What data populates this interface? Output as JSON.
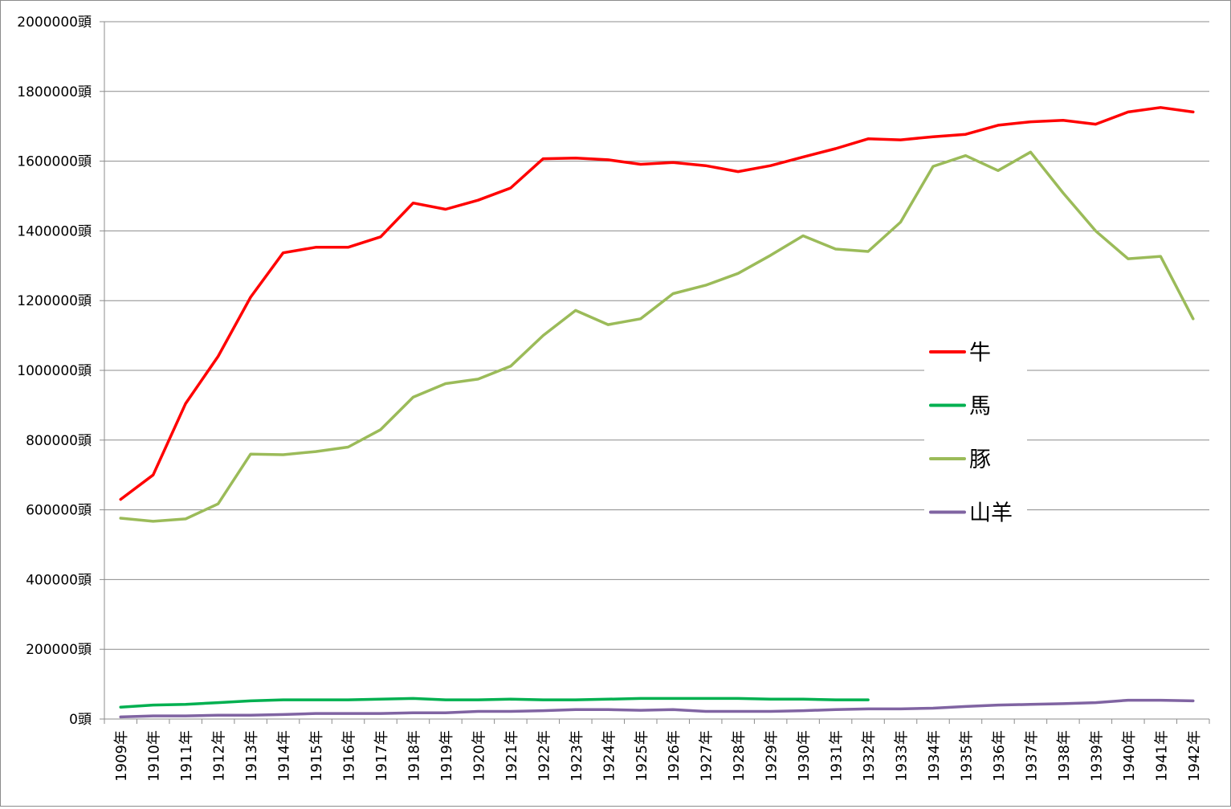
{
  "chart_data": {
    "type": "line",
    "title": "",
    "xlabel": "",
    "ylabel": "",
    "ylim": [
      0,
      2000000
    ],
    "ytick_values": [
      0,
      200000,
      400000,
      600000,
      800000,
      1000000,
      1200000,
      1400000,
      1600000,
      1800000,
      2000000
    ],
    "ytick_labels": [
      "0頭",
      "200000頭",
      "400000頭",
      "600000頭",
      "800000頭",
      "1000000頭",
      "1200000頭",
      "1400000頭",
      "1600000頭",
      "1800000頭",
      "2000000頭"
    ],
    "grid": true,
    "legend_position": "right",
    "categories": [
      "1909年",
      "1910年",
      "1911年",
      "1912年",
      "1913年",
      "1914年",
      "1915年",
      "1916年",
      "1917年",
      "1918年",
      "1919年",
      "1920年",
      "1921年",
      "1922年",
      "1923年",
      "1924年",
      "1925年",
      "1926年",
      "1927年",
      "1928年",
      "1929年",
      "1930年",
      "1931年",
      "1932年",
      "1933年",
      "1934年",
      "1935年",
      "1936年",
      "1937年",
      "1938年",
      "1939年",
      "1940年",
      "1941年",
      "1942年"
    ],
    "series": [
      {
        "name": "牛",
        "color": "#ff0000",
        "values": [
          630000,
          700000,
          905000,
          1040000,
          1210000,
          1337000,
          1353000,
          1353000,
          1383000,
          1480000,
          1462000,
          1488000,
          1523000,
          1607000,
          1609000,
          1604000,
          1591000,
          1596000,
          1587000,
          1570000,
          1587000,
          1612000,
          1636000,
          1664000,
          1661000,
          1670000,
          1677000,
          1703000,
          1713000,
          1717000,
          1706000,
          1741000,
          1754000,
          1741000
        ]
      },
      {
        "name": "馬",
        "color": "#00b050",
        "values": [
          34000,
          40000,
          42000,
          47000,
          52000,
          55000,
          55000,
          55000,
          57000,
          59000,
          55000,
          55000,
          57000,
          55000,
          55000,
          57000,
          59000,
          59000,
          59000,
          59000,
          57000,
          57000,
          55000,
          55000,
          null,
          null,
          null,
          null,
          null,
          null,
          null,
          null,
          null,
          null
        ]
      },
      {
        "name": "豚",
        "color": "#9bbb59",
        "values": [
          576000,
          567000,
          574000,
          617000,
          760000,
          758000,
          767000,
          780000,
          830000,
          923000,
          962000,
          975000,
          1012000,
          1100000,
          1172000,
          1131000,
          1148000,
          1220000,
          1244000,
          1278000,
          1330000,
          1386000,
          1348000,
          1341000,
          1425000,
          1585000,
          1616000,
          1573000,
          1626000,
          1509000,
          1400000,
          1320000,
          1327000,
          1148000
        ]
      },
      {
        "name": "山羊",
        "color": "#8064a2",
        "values": [
          6000,
          9000,
          9000,
          11000,
          11000,
          13000,
          16000,
          16000,
          16000,
          18000,
          18000,
          22000,
          22000,
          24000,
          27000,
          27000,
          25000,
          27000,
          22000,
          22000,
          22000,
          24000,
          27000,
          29000,
          29000,
          31000,
          36000,
          40000,
          42000,
          44000,
          47000,
          54000,
          54000,
          52000
        ]
      }
    ]
  }
}
